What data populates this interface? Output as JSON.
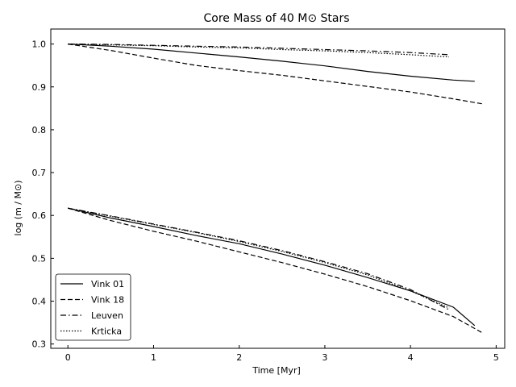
{
  "chart_data": {
    "type": "line",
    "title": "Core Mass of 40 M⊙ Stars",
    "xlabel": "Time [Myr]",
    "ylabel": "log (m / M⊙)",
    "xlim": [
      -0.2,
      5.1
    ],
    "ylim": [
      0.29,
      1.035
    ],
    "x_ticks": [
      0,
      1,
      2,
      3,
      4,
      5
    ],
    "y_ticks": [
      0.3,
      0.4,
      0.5,
      0.6,
      0.7,
      0.8,
      0.9,
      1.0
    ],
    "x_tick_labels": [
      "0",
      "1",
      "2",
      "3",
      "4",
      "5"
    ],
    "y_tick_labels": [
      "0.3",
      "0.4",
      "0.5",
      "0.6",
      "0.7",
      "0.8",
      "0.9",
      "1.0"
    ],
    "grid": false,
    "legend_position": "lower-left",
    "series": [
      {
        "name": "Vink 01",
        "style": "solid",
        "color": "#000000",
        "upper": {
          "x": [
            0,
            0.5,
            1,
            1.5,
            2,
            2.5,
            3,
            3.5,
            4,
            4.5,
            4.75
          ],
          "y": [
            1.0,
            0.995,
            0.988,
            0.979,
            0.97,
            0.96,
            0.949,
            0.936,
            0.925,
            0.916,
            0.913
          ]
        },
        "lower": {
          "x": [
            0,
            0.5,
            1,
            1.5,
            2,
            2.5,
            3,
            3.5,
            4,
            4.5,
            4.75
          ],
          "y": [
            0.617,
            0.594,
            0.574,
            0.553,
            0.534,
            0.51,
            0.484,
            0.455,
            0.424,
            0.386,
            0.343
          ]
        }
      },
      {
        "name": "Vink 18",
        "style": "dashed",
        "color": "#000000",
        "upper": {
          "x": [
            0,
            0.5,
            1,
            1.5,
            2,
            2.5,
            3,
            3.5,
            4,
            4.5,
            4.85
          ],
          "y": [
            1.0,
            0.985,
            0.967,
            0.95,
            0.938,
            0.927,
            0.914,
            0.901,
            0.888,
            0.872,
            0.86
          ]
        },
        "lower": {
          "x": [
            0,
            0.5,
            1,
            1.5,
            2,
            2.5,
            3,
            3.5,
            4,
            4.5,
            4.85
          ],
          "y": [
            0.617,
            0.588,
            0.563,
            0.54,
            0.515,
            0.49,
            0.463,
            0.434,
            0.401,
            0.364,
            0.325
          ]
        }
      },
      {
        "name": "Leuven",
        "style": "dashdot",
        "color": "#000000",
        "upper": {
          "x": [
            0,
            0.5,
            1,
            1.5,
            2,
            2.5,
            3,
            3.5,
            4,
            4.45
          ],
          "y": [
            1.0,
            0.999,
            0.997,
            0.995,
            0.993,
            0.99,
            0.987,
            0.984,
            0.98,
            0.975
          ]
        },
        "lower": {
          "x": [
            0,
            0.5,
            1,
            1.5,
            2,
            2.5,
            3,
            3.5,
            4,
            4.45
          ],
          "y": [
            0.617,
            0.599,
            0.58,
            0.561,
            0.541,
            0.518,
            0.492,
            0.464,
            0.427,
            0.38
          ]
        }
      },
      {
        "name": "Krticka",
        "style": "dotted",
        "color": "#000000",
        "upper": {
          "x": [
            0,
            0.5,
            1,
            1.5,
            2,
            2.5,
            3,
            3.5,
            4,
            4.45
          ],
          "y": [
            1.0,
            0.998,
            0.996,
            0.993,
            0.991,
            0.987,
            0.984,
            0.98,
            0.975,
            0.97
          ]
        },
        "lower": {
          "x": [
            0,
            0.5,
            1,
            1.5,
            2,
            2.5,
            3,
            3.5,
            4,
            4.45
          ],
          "y": [
            0.617,
            0.598,
            0.579,
            0.56,
            0.539,
            0.516,
            0.49,
            0.461,
            0.424,
            0.384
          ]
        }
      }
    ]
  }
}
